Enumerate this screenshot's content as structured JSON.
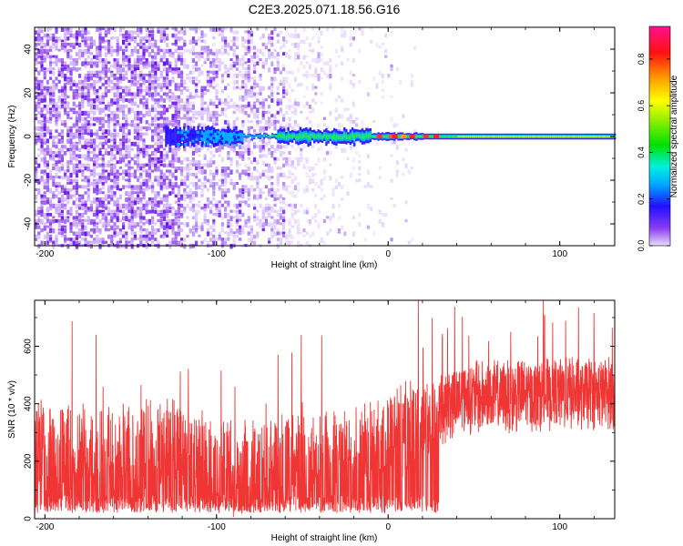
{
  "title": "C2E3.2025.071.18.56.G16",
  "chart_data": [
    {
      "type": "heatmap",
      "xlabel": "Height of straight line (km)",
      "ylabel": "Frequency (Hz)",
      "xlim": [
        -206,
        132
      ],
      "ylim": [
        -50,
        50
      ],
      "x_ticks": [
        -200,
        -100,
        0,
        100
      ],
      "y_ticks": [
        -40,
        -20,
        0,
        20,
        40
      ],
      "colorbar": {
        "label": "Normalized spectral amplitude",
        "range": [
          0,
          0.94
        ],
        "ticks": [
          0.0,
          0.2,
          0.4,
          0.6,
          0.8
        ]
      },
      "description_points": {
        "carrier_frequency_hz": 0,
        "carrier_start_km": -130,
        "noise_region_end_km": -20
      }
    },
    {
      "type": "line",
      "xlabel": "Height of straight line (km)",
      "ylabel": "SNR (10 * v/v)",
      "xlim": [
        -206,
        132
      ],
      "ylim": [
        0,
        760
      ],
      "x_ticks": [
        -200,
        -100,
        0,
        100
      ],
      "y_ticks": [
        0,
        200,
        400,
        600
      ],
      "color": "#f03535",
      "trend": [
        {
          "x": -206,
          "y": 250
        },
        {
          "x": -120,
          "y": 250
        },
        {
          "x": -90,
          "y": 175
        },
        {
          "x": -20,
          "y": 220
        },
        {
          "x": 0,
          "y": 300
        },
        {
          "x": 20,
          "y": 330
        },
        {
          "x": 40,
          "y": 420
        },
        {
          "x": 132,
          "y": 440
        }
      ]
    }
  ]
}
